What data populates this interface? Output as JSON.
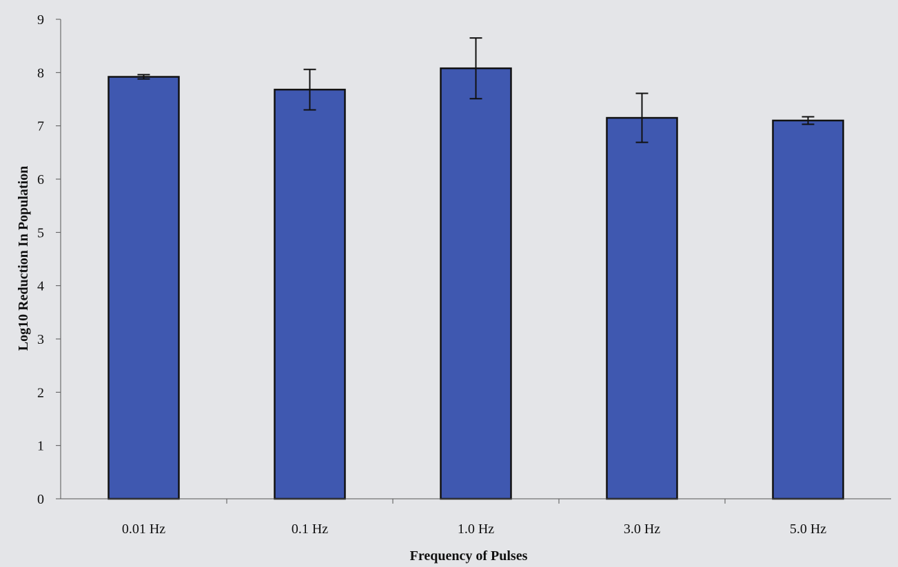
{
  "chart_data": {
    "type": "bar",
    "title": "",
    "xlabel": "Frequency of Pulses",
    "ylabel": "Log10 Reduction In Population",
    "categories": [
      "0.01 Hz",
      "0.1 Hz",
      "1.0 Hz",
      "3.0 Hz",
      "5.0 Hz"
    ],
    "values": [
      7.92,
      7.68,
      8.08,
      7.15,
      7.1
    ],
    "error": [
      0.04,
      0.38,
      0.57,
      0.46,
      0.07
    ],
    "ylim": [
      0,
      9
    ],
    "yticks": [
      0,
      1,
      2,
      3,
      4,
      5,
      6,
      7,
      8,
      9
    ],
    "grid": false,
    "legend": "none",
    "colors": {
      "bar_fill": "#3f58b0",
      "bar_stroke": "#111111",
      "axis": "#555555",
      "text": "#111111",
      "background": "#e4e5e8"
    }
  }
}
